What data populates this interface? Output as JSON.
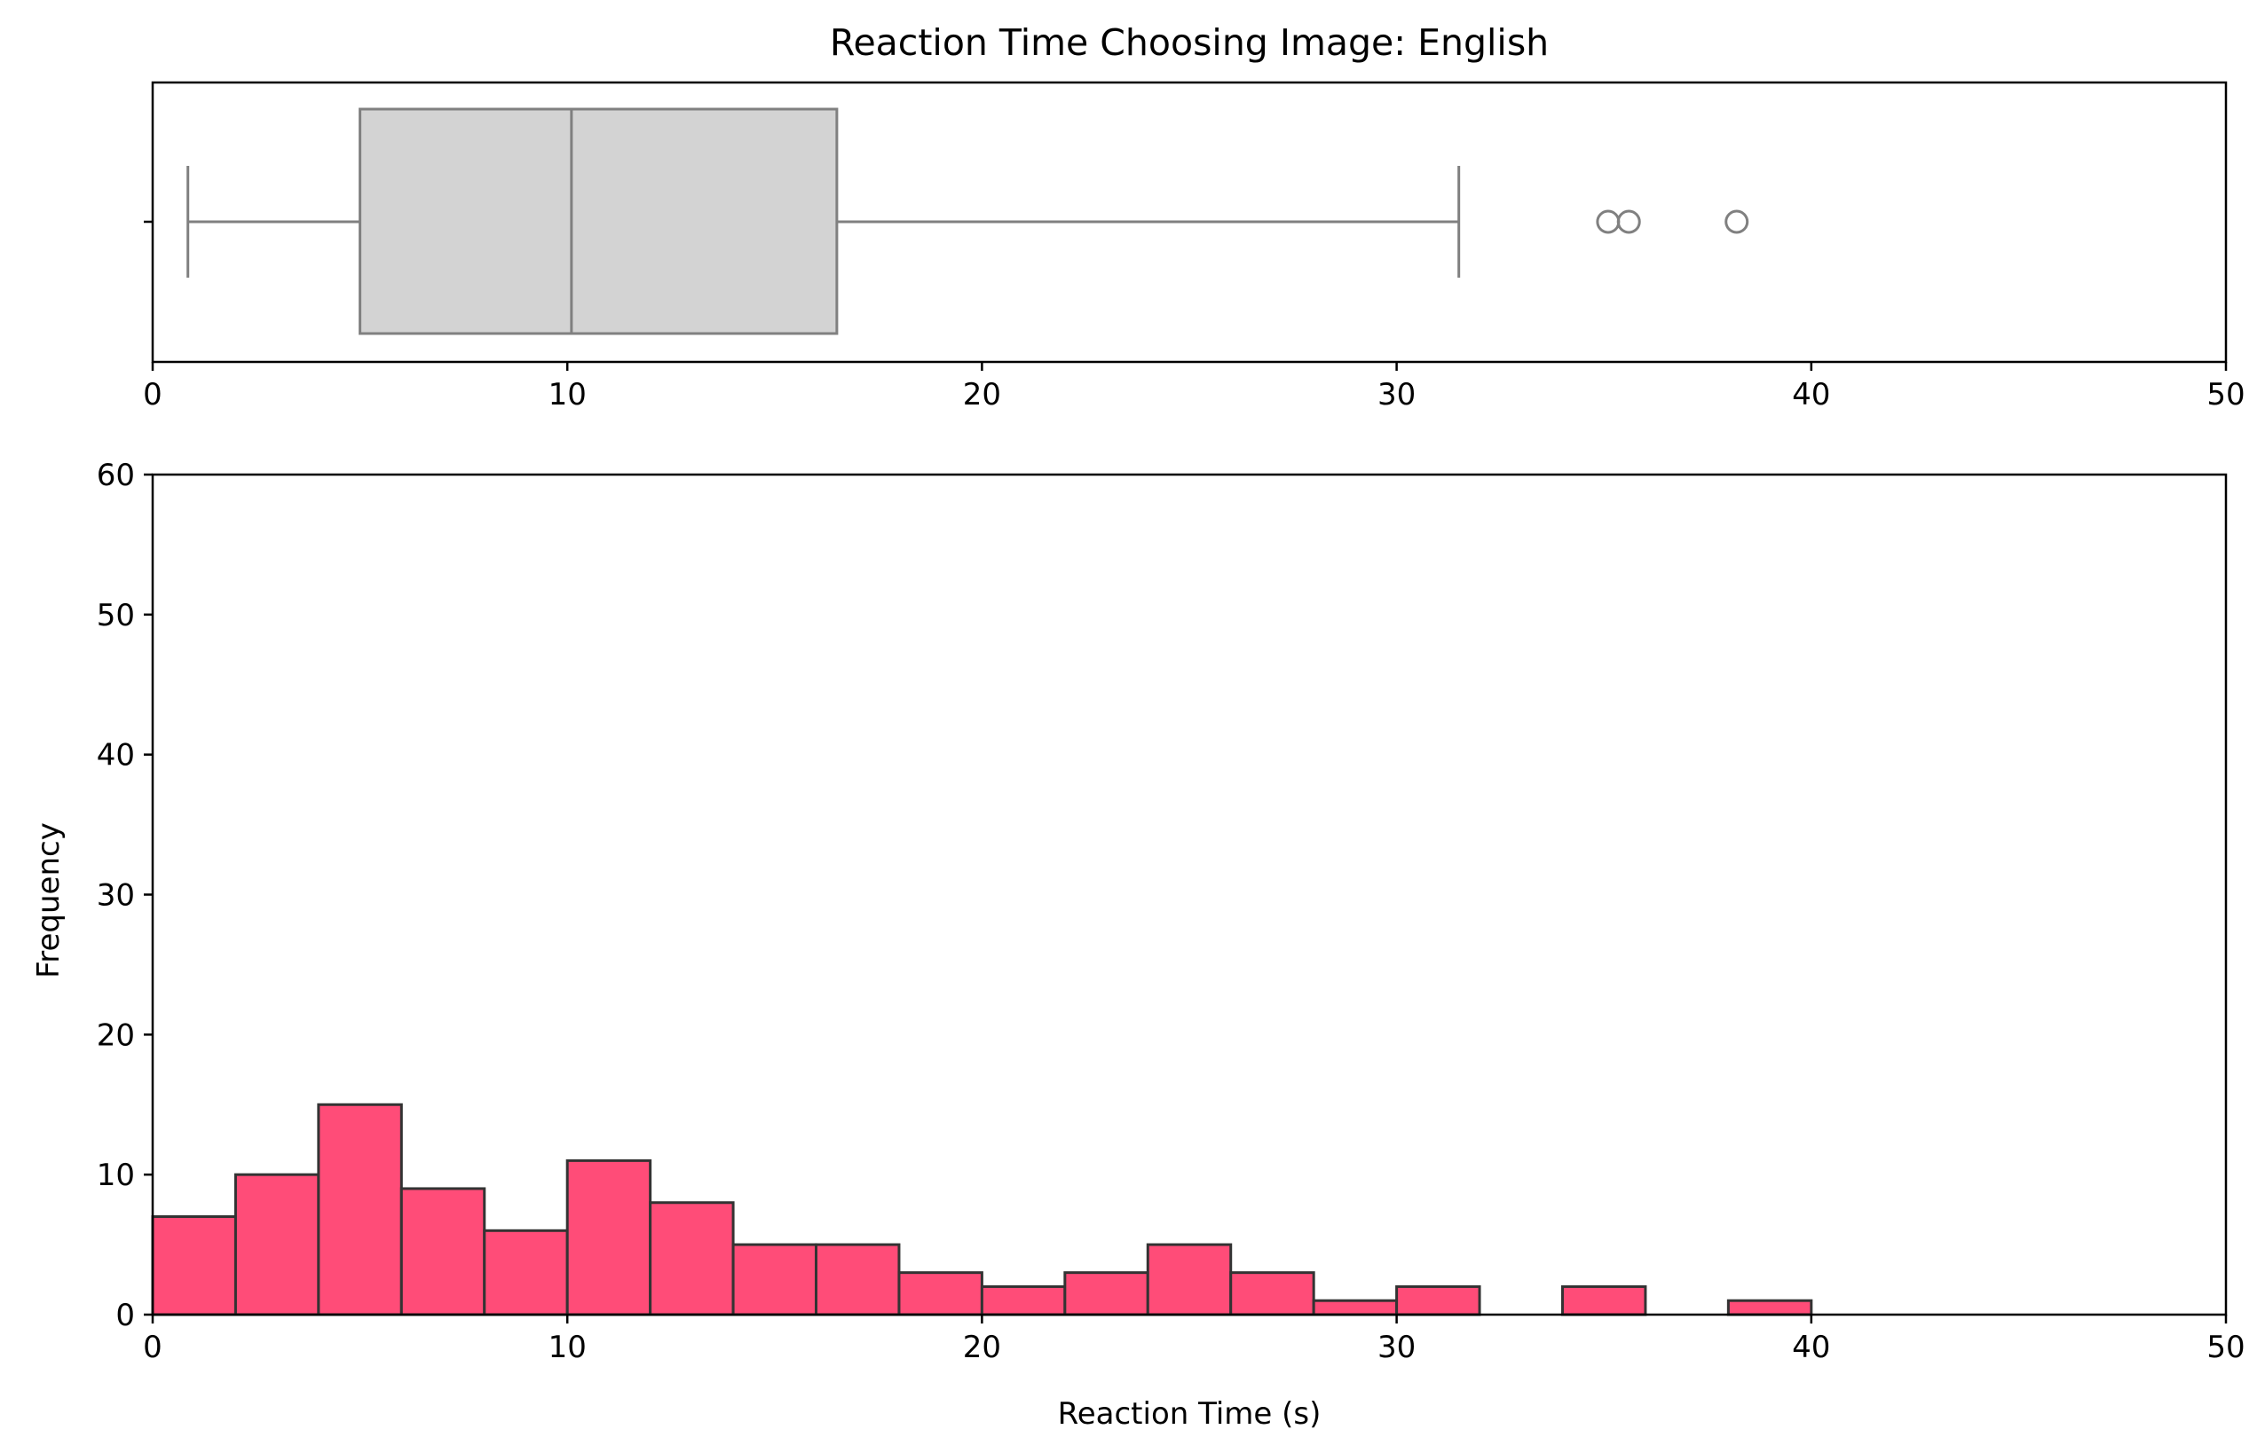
{
  "chart_data": [
    {
      "type": "box",
      "title": "Reaction Time Choosing Image: English",
      "xlim": [
        0,
        50
      ],
      "xticks": [
        0,
        10,
        20,
        30,
        40,
        50
      ],
      "whisker_low": 0.85,
      "q1": 5.0,
      "median": 10.1,
      "q3": 16.5,
      "whisker_high": 31.5,
      "outliers": [
        35.1,
        35.6,
        38.2
      ],
      "box_color": "#d3d3d3",
      "line_color": "#808080"
    },
    {
      "type": "bar",
      "xlabel": "Reaction Time (s)",
      "ylabel": "Frequency",
      "xlim": [
        0,
        50
      ],
      "ylim": [
        0,
        60
      ],
      "xticks": [
        0,
        10,
        20,
        30,
        40,
        50
      ],
      "yticks": [
        0,
        10,
        20,
        30,
        40,
        50,
        60
      ],
      "bin_width": 2,
      "bins": [
        {
          "x": 0,
          "count": 7
        },
        {
          "x": 2,
          "count": 10
        },
        {
          "x": 4,
          "count": 15
        },
        {
          "x": 6,
          "count": 9
        },
        {
          "x": 8,
          "count": 6
        },
        {
          "x": 10,
          "count": 11
        },
        {
          "x": 12,
          "count": 8
        },
        {
          "x": 14,
          "count": 5
        },
        {
          "x": 16,
          "count": 5
        },
        {
          "x": 18,
          "count": 3
        },
        {
          "x": 20,
          "count": 2
        },
        {
          "x": 22,
          "count": 3
        },
        {
          "x": 24,
          "count": 5
        },
        {
          "x": 26,
          "count": 3
        },
        {
          "x": 28,
          "count": 1
        },
        {
          "x": 30,
          "count": 2
        },
        {
          "x": 34,
          "count": 2
        },
        {
          "x": 38,
          "count": 1
        }
      ],
      "bar_color": "#ff4c78",
      "edge_color": "#333333"
    }
  ]
}
